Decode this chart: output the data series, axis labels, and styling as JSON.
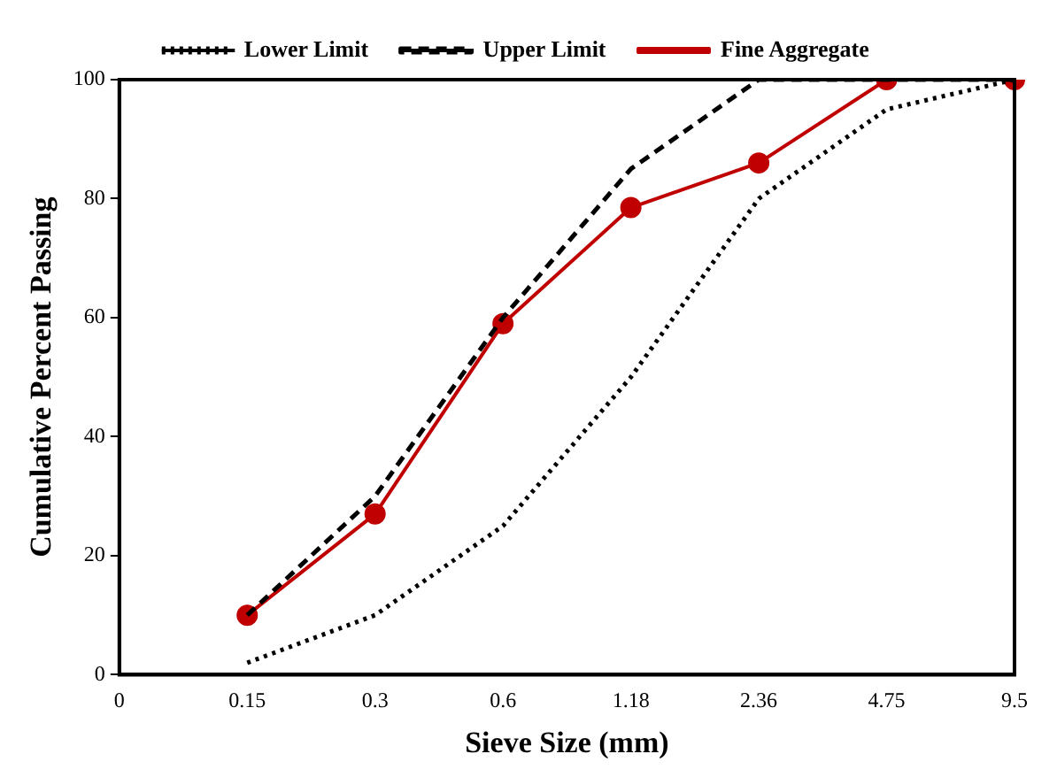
{
  "chart_data": {
    "type": "line",
    "xlabel": "Sieve Size (mm)",
    "ylabel": "Cumulative Percent Passing",
    "categories": [
      "0",
      "0.15",
      "0.3",
      "0.6",
      "1.18",
      "2.36",
      "4.75",
      "9.5"
    ],
    "ylim": [
      0,
      100
    ],
    "yticks": [
      0,
      20,
      40,
      60,
      80,
      100
    ],
    "grid": false,
    "legend": "top",
    "series": [
      {
        "name": "Lower Limit",
        "color": "#000000",
        "line_style": "dotted",
        "marker": "none",
        "values": [
          null,
          2,
          10,
          25,
          50,
          80,
          95,
          100
        ]
      },
      {
        "name": "Upper Limit",
        "color": "#000000",
        "line_style": "dashed",
        "marker": "none",
        "values": [
          null,
          10,
          30,
          60,
          85,
          100,
          100,
          100
        ]
      },
      {
        "name": "Fine Aggregate",
        "color": "#c00000",
        "line_style": "solid",
        "marker": "circle",
        "values": [
          null,
          10,
          27,
          59,
          78.5,
          86,
          100,
          100
        ]
      }
    ]
  }
}
